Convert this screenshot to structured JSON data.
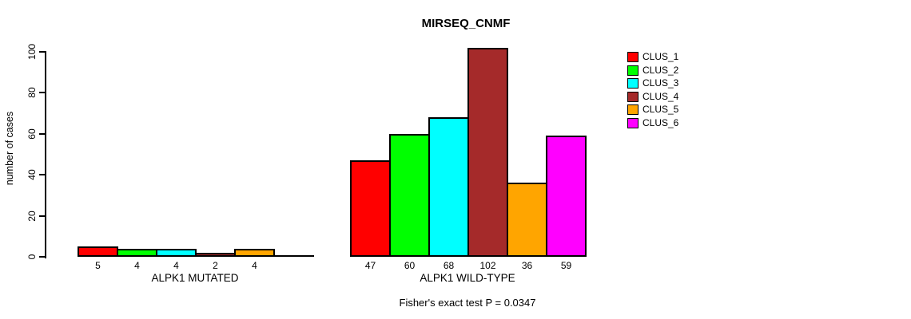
{
  "chart_data": {
    "type": "bar",
    "title": "MIRSEQ_CNMF",
    "ylabel": "number of cases",
    "xlabel": "",
    "ylim": [
      0,
      100
    ],
    "yticks": [
      0,
      20,
      40,
      60,
      80,
      100
    ],
    "grid": false,
    "legend_position": "right",
    "series_names": [
      "CLUS_1",
      "CLUS_2",
      "CLUS_3",
      "CLUS_4",
      "CLUS_5",
      "CLUS_6"
    ],
    "colors": [
      "#ff0000",
      "#00ff00",
      "#00ffff",
      "#a52a2a",
      "#ffa500",
      "#ff00ff"
    ],
    "groups": [
      {
        "label": "ALPK1 MUTATED",
        "values": [
          5,
          4,
          4,
          2,
          4,
          0
        ],
        "value_labels": [
          "5",
          "4",
          "4",
          "2",
          "4",
          ""
        ]
      },
      {
        "label": "ALPK1 WILD-TYPE",
        "values": [
          47,
          60,
          68,
          102,
          36,
          59
        ],
        "value_labels": [
          "47",
          "60",
          "68",
          "102",
          "36",
          "59"
        ]
      }
    ],
    "annotation": "Fisher's exact test P = 0.0347"
  }
}
